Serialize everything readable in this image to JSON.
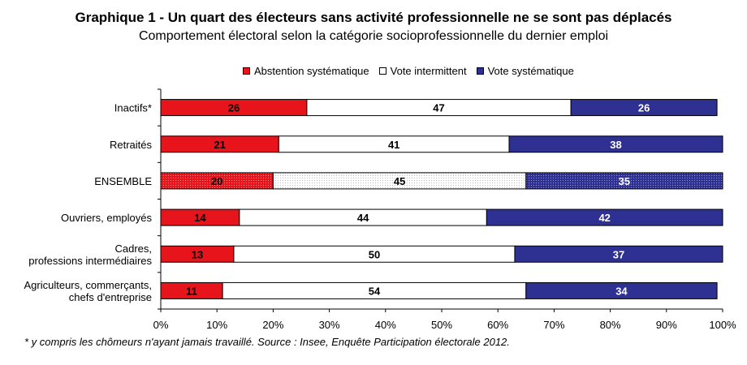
{
  "title": "Graphique 1 - Un quart des électeurs sans activité professionnelle ne se sont pas déplacés",
  "subtitle": "Comportement électoral selon la catégorie socioprofessionnelle du dernier emploi",
  "footnote": "* y compris les chômeurs n'ayant jamais travaillé. Source : Insee, Enquête Participation électorale 2012.",
  "colors": {
    "abstention": "#e8141c",
    "intermittent": "#ffffff",
    "systematique": "#2e3192"
  },
  "chart_data": {
    "type": "bar",
    "orientation": "horizontal",
    "stacked": "percent",
    "categories": [
      [
        "Inactifs*"
      ],
      [
        "Retraités"
      ],
      [
        "ENSEMBLE"
      ],
      [
        "Ouvriers, employés"
      ],
      [
        "Cadres,",
        "professions intermédiaires"
      ],
      [
        "Agriculteurs, commerçants,",
        "chefs d'entreprise"
      ]
    ],
    "series": [
      {
        "name": "Abstention systématique",
        "values": [
          26,
          21,
          20,
          14,
          13,
          11
        ]
      },
      {
        "name": "Vote intermittent",
        "values": [
          47,
          41,
          45,
          44,
          50,
          54
        ]
      },
      {
        "name": "Vote systématique",
        "values": [
          26,
          38,
          35,
          42,
          37,
          34
        ]
      }
    ],
    "xlim": [
      0,
      100
    ],
    "x_ticks": [
      "0%",
      "10%",
      "20%",
      "30%",
      "40%",
      "50%",
      "60%",
      "70%",
      "80%",
      "90%",
      "100%"
    ],
    "legend_position": "top",
    "highlighted_category": "ENSEMBLE",
    "grid": false
  }
}
